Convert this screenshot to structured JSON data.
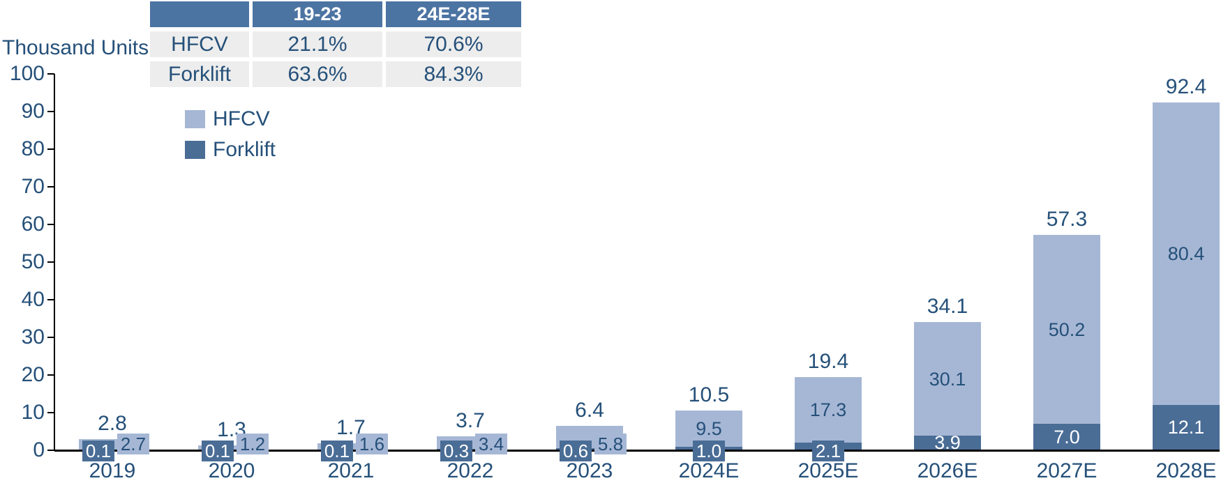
{
  "cagr_table": {
    "col_headers": [
      "",
      "19-23",
      "24E-28E"
    ],
    "rows": [
      {
        "label": "HFCV",
        "values": [
          "21.1%",
          "70.6%"
        ]
      },
      {
        "label": "Forklift",
        "values": [
          "63.6%",
          "84.3%"
        ]
      }
    ]
  },
  "legend": [
    {
      "label": "HFCV",
      "color": "#A6B7D5"
    },
    {
      "label": "Forklift",
      "color": "#4A6D96"
    }
  ],
  "colors": {
    "hfcv": "#A6B7D5",
    "forklift": "#4A6D96",
    "table_header_bg": "#4C74A3",
    "table_row_bg": "#EDEDED",
    "text_navy": "#255079",
    "axis_black": "#000000"
  },
  "chart_data": {
    "type": "bar",
    "stacked": true,
    "title": "",
    "ylabel": "Thousand Units",
    "xlabel": "",
    "ylim": [
      0,
      100
    ],
    "y_ticks": [
      0,
      10,
      20,
      30,
      40,
      50,
      60,
      70,
      80,
      90,
      100
    ],
    "grid": false,
    "legend_position": "upper-left",
    "categories": [
      "2019",
      "2020",
      "2021",
      "2022",
      "2023",
      "2024E",
      "2025E",
      "2026E",
      "2027E",
      "2028E"
    ],
    "series": [
      {
        "name": "HFCV",
        "color": "#A6B7D5",
        "values": [
          2.7,
          1.2,
          1.6,
          3.4,
          5.8,
          9.5,
          17.3,
          30.1,
          50.2,
          80.4
        ]
      },
      {
        "name": "Forklift",
        "color": "#4A6D96",
        "values": [
          0.1,
          0.1,
          0.1,
          0.3,
          0.6,
          1.0,
          2.1,
          3.9,
          7.0,
          12.1
        ]
      }
    ],
    "totals": [
      2.8,
      1.3,
      1.7,
      3.7,
      6.4,
      10.5,
      19.4,
      34.1,
      57.3,
      92.4
    ]
  }
}
